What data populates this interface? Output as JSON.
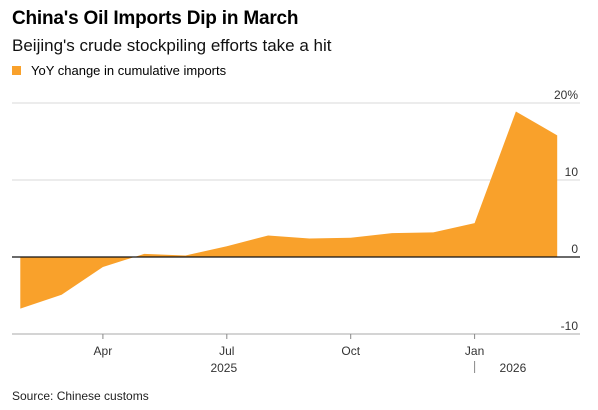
{
  "title": "China's Oil Imports Dip in March",
  "subtitle": "Beijing's crude stockpiling efforts take a hit",
  "source": "Source: Chinese customs",
  "legend": {
    "label": "YoY change in cumulative imports",
    "color": "#f9a12b"
  },
  "chart_data": {
    "type": "area",
    "series": [
      {
        "name": "YoY change in cumulative imports",
        "color": "#f9a12b",
        "x": [
          "2025-02",
          "2025-03",
          "2025-04",
          "2025-05",
          "2025-06",
          "2025-07",
          "2025-08",
          "2025-09",
          "2025-10",
          "2025-11",
          "2025-12",
          "2026-01",
          "2026-02",
          "2026-03"
        ],
        "values": [
          -6.7,
          -4.9,
          -1.3,
          0.4,
          0.2,
          1.4,
          2.8,
          2.4,
          2.5,
          3.1,
          3.2,
          4.4,
          18.9,
          15.8
        ]
      }
    ],
    "ylim": [
      -10,
      20
    ],
    "yticks": [
      {
        "value": 20,
        "label": "20%"
      },
      {
        "value": 10,
        "label": "10"
      },
      {
        "value": 0,
        "label": "0"
      },
      {
        "value": -10,
        "label": "-10"
      }
    ],
    "xticks": [
      {
        "x": "2025-04",
        "label": "Apr"
      },
      {
        "x": "2025-07",
        "label": "Jul"
      },
      {
        "x": "2025-10",
        "label": "Oct"
      },
      {
        "x": "2026-01",
        "label": "Jan"
      }
    ],
    "years": [
      {
        "x": "2025-07",
        "label": "2025"
      },
      {
        "x": "2026-02",
        "label": "2026"
      }
    ],
    "grid": true
  }
}
